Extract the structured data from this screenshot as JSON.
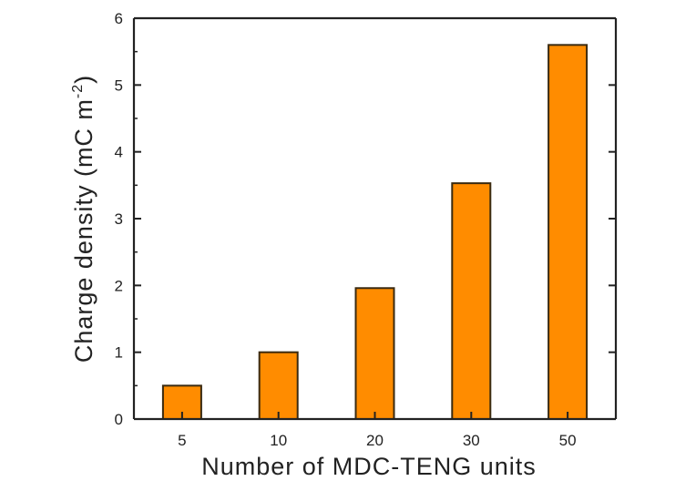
{
  "chart_data": {
    "type": "bar",
    "categories": [
      "5",
      "10",
      "20",
      "30",
      "50"
    ],
    "values": [
      0.5,
      1.0,
      1.96,
      3.53,
      5.6
    ],
    "xlabel": "Number of MDC-TENG units",
    "ylabel_main": "Charge density (mC m",
    "ylabel_sup": "-2",
    "ylabel_close": ")",
    "ylim": [
      0,
      6
    ],
    "yticks": [
      "0",
      "1",
      "2",
      "3",
      "4",
      "5",
      "6"
    ],
    "grid": false,
    "legend": "none",
    "bar_color": "#FF8C00",
    "bar_edge_color": "#3a2a10",
    "axis_color": "#222222"
  }
}
